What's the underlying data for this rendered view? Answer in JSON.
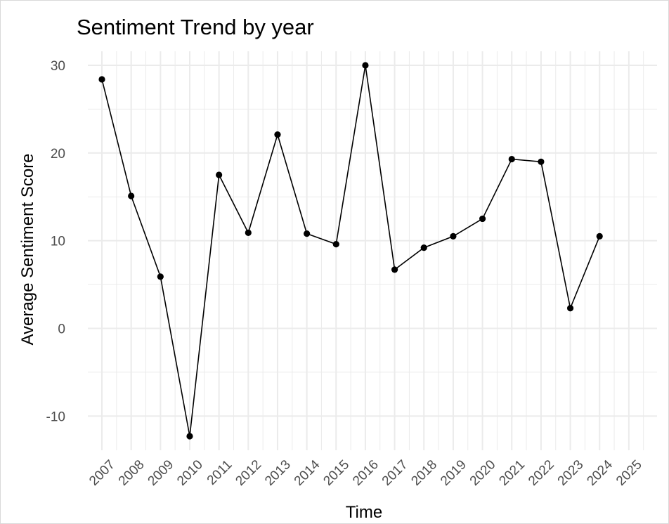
{
  "chart_data": {
    "type": "line",
    "title": "Sentiment Trend by year",
    "xlabel": "Time",
    "ylabel": "Average Sentiment Score",
    "x": [
      "2007",
      "2008",
      "2009",
      "2010",
      "2011",
      "2012",
      "2013",
      "2014",
      "2015",
      "2016",
      "2017",
      "2018",
      "2019",
      "2020",
      "2021",
      "2022",
      "2023",
      "2024"
    ],
    "x_ticks": [
      "2007",
      "2008",
      "2009",
      "2010",
      "2011",
      "2012",
      "2013",
      "2014",
      "2015",
      "2016",
      "2017",
      "2018",
      "2019",
      "2020",
      "2021",
      "2022",
      "2023",
      "2024",
      "2025"
    ],
    "series": [
      {
        "values": [
          28.4,
          15.1,
          5.9,
          -12.3,
          17.5,
          10.9,
          22.1,
          10.8,
          9.6,
          30.0,
          6.7,
          9.2,
          10.5,
          12.5,
          19.3,
          19.0,
          2.3,
          10.5
        ]
      }
    ],
    "y_ticks": [
      -10,
      0,
      10,
      20,
      30
    ],
    "ylim": [
      -13.9,
      31.6
    ],
    "grid": true,
    "colors": {
      "line": "#000000",
      "point": "#000000",
      "grid": "#ebebeb"
    }
  }
}
